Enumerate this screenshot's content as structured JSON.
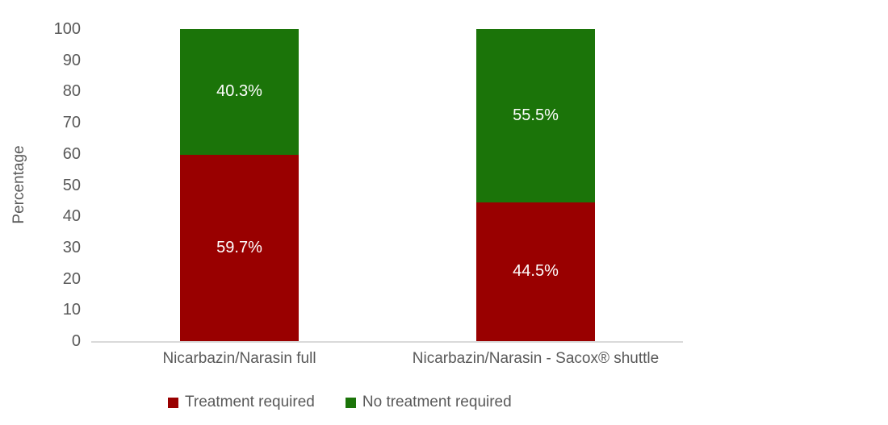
{
  "chart_data": {
    "type": "bar",
    "stacked": true,
    "title": "",
    "xlabel": "",
    "ylabel": "Percentage",
    "ylim": [
      0,
      100
    ],
    "yticks": [
      0,
      10,
      20,
      30,
      40,
      50,
      60,
      70,
      80,
      90,
      100
    ],
    "grid": false,
    "legend_position": "bottom",
    "categories": [
      "Nicarbazin/Narasin full",
      "Nicarbazin/Narasin - Sacox® shuttle"
    ],
    "series": [
      {
        "name": "Treatment required",
        "color": "#990000",
        "values": [
          59.7,
          44.5
        ],
        "data_labels": [
          "59.7%",
          "44.5%"
        ]
      },
      {
        "name": "No treatment required",
        "color": "#1b7409",
        "values": [
          40.3,
          55.5
        ],
        "data_labels": [
          "40.3%",
          "55.5%"
        ]
      }
    ],
    "colors": {
      "axis_line": "#d9d9d9",
      "tick_text": "#595959",
      "data_label_text": "#ffffff"
    }
  }
}
